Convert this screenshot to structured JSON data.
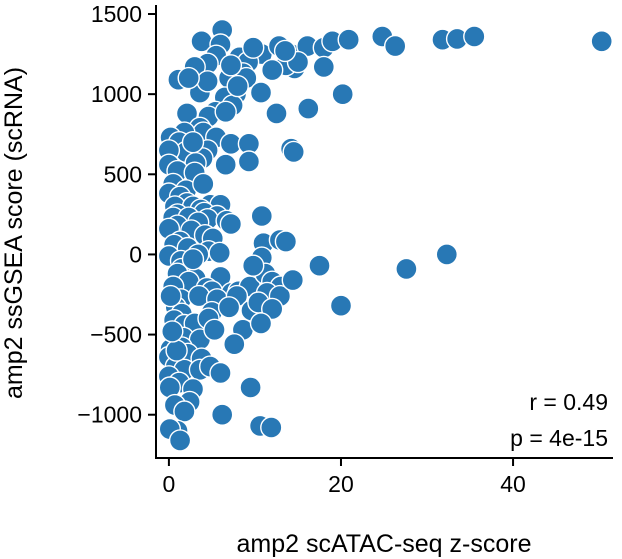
{
  "chart_data": {
    "type": "scatter",
    "title": "",
    "xlabel": "amp2 scATAC-seq z-score",
    "ylabel": "amp2 ssGSEA score (scRNA)",
    "xlim": [
      -1.5,
      51.5
    ],
    "ylim": [
      -1270,
      1550
    ],
    "xticks": [
      0,
      20,
      40
    ],
    "yticks": [
      -1000,
      -500,
      0,
      500,
      1000,
      1500
    ],
    "grid": false,
    "marker_color": "#2878b5",
    "marker_edge_color": "#ffffff",
    "annotations": [
      "r = 0.49",
      "p = 4e-15"
    ],
    "points": [
      [
        6.2,
        1400
      ],
      [
        3.8,
        1330
      ],
      [
        6.0,
        1310
      ],
      [
        8.2,
        1230
      ],
      [
        10.8,
        1250
      ],
      [
        9.2,
        1200
      ],
      [
        12.8,
        1300
      ],
      [
        14.2,
        1250
      ],
      [
        16.1,
        1300
      ],
      [
        18.0,
        1290
      ],
      [
        19.0,
        1330
      ],
      [
        20.9,
        1340
      ],
      [
        24.8,
        1360
      ],
      [
        26.3,
        1300
      ],
      [
        31.8,
        1340
      ],
      [
        33.5,
        1345
      ],
      [
        35.5,
        1360
      ],
      [
        50.3,
        1330
      ],
      [
        14.6,
        1160
      ],
      [
        13.6,
        1180
      ],
      [
        15.0,
        1200
      ],
      [
        18.0,
        1170
      ],
      [
        5.5,
        1240
      ],
      [
        4.5,
        1190
      ],
      [
        3.0,
        1170
      ],
      [
        7.0,
        1100
      ],
      [
        8.6,
        1130
      ],
      [
        12.0,
        1150
      ],
      [
        1.1,
        1090
      ],
      [
        3.6,
        1010
      ],
      [
        9.0,
        1100
      ],
      [
        10.7,
        1010
      ],
      [
        12.5,
        880
      ],
      [
        16.2,
        910
      ],
      [
        20.2,
        1000
      ],
      [
        7.8,
        1000
      ],
      [
        4.5,
        1080
      ],
      [
        6.5,
        980
      ],
      [
        5.4,
        890
      ],
      [
        4.6,
        860
      ],
      [
        7.4,
        930
      ],
      [
        2.1,
        880
      ],
      [
        3.6,
        790
      ],
      [
        4.0,
        760
      ],
      [
        5.5,
        730
      ],
      [
        6.6,
        890
      ],
      [
        1.8,
        760
      ],
      [
        0.2,
        730
      ],
      [
        1.2,
        700
      ],
      [
        2.0,
        640
      ],
      [
        0.0,
        650
      ],
      [
        4.5,
        650
      ],
      [
        7.2,
        690
      ],
      [
        9.3,
        690
      ],
      [
        14.2,
        660
      ],
      [
        14.5,
        640
      ],
      [
        3.9,
        600
      ],
      [
        6.6,
        560
      ],
      [
        9.3,
        580
      ],
      [
        3.1,
        570
      ],
      [
        0.0,
        560
      ],
      [
        1.0,
        520
      ],
      [
        3.0,
        510
      ],
      [
        0.5,
        440
      ],
      [
        2.0,
        400
      ],
      [
        0.0,
        380
      ],
      [
        4.0,
        440
      ],
      [
        1.3,
        360
      ],
      [
        2.1,
        320
      ],
      [
        0.7,
        300
      ],
      [
        2.8,
        300
      ],
      [
        4.8,
        310
      ],
      [
        6.0,
        310
      ],
      [
        3.7,
        280
      ],
      [
        4.1,
        260
      ],
      [
        5.6,
        240
      ],
      [
        1.0,
        250
      ],
      [
        0.5,
        230
      ],
      [
        2.3,
        230
      ],
      [
        4.5,
        220
      ],
      [
        3.4,
        200
      ],
      [
        1.0,
        180
      ],
      [
        6.7,
        210
      ],
      [
        7.2,
        190
      ],
      [
        10.8,
        240
      ],
      [
        0.0,
        160
      ],
      [
        2.6,
        150
      ],
      [
        4.2,
        120
      ],
      [
        5.1,
        100
      ],
      [
        1.3,
        80
      ],
      [
        0.6,
        60
      ],
      [
        2.2,
        40
      ],
      [
        4.6,
        20
      ],
      [
        5.9,
        10
      ],
      [
        3.4,
        0
      ],
      [
        0.0,
        -10
      ],
      [
        1.4,
        -40
      ],
      [
        11.0,
        70
      ],
      [
        12.9,
        90
      ],
      [
        13.6,
        80
      ],
      [
        10.8,
        -20
      ],
      [
        1.5,
        -90
      ],
      [
        1.0,
        -120
      ],
      [
        3.1,
        -150
      ],
      [
        6.0,
        -140
      ],
      [
        2.3,
        -170
      ],
      [
        0.5,
        -200
      ],
      [
        4.4,
        -210
      ],
      [
        5.0,
        -230
      ],
      [
        7.3,
        -240
      ],
      [
        8.1,
        -230
      ],
      [
        9.4,
        -200
      ],
      [
        11.2,
        -120
      ],
      [
        9.8,
        -70
      ],
      [
        12.0,
        -170
      ],
      [
        13.0,
        -200
      ],
      [
        1.4,
        -280
      ],
      [
        3.5,
        -260
      ],
      [
        5.6,
        -280
      ],
      [
        7.9,
        -260
      ],
      [
        11.4,
        -240
      ],
      [
        12.9,
        -260
      ],
      [
        14.4,
        -160
      ],
      [
        17.5,
        -70
      ],
      [
        20.0,
        -320
      ],
      [
        0.8,
        -330
      ],
      [
        1.5,
        -370
      ],
      [
        5.0,
        -360
      ],
      [
        7.0,
        -330
      ],
      [
        9.6,
        -350
      ],
      [
        10.4,
        -300
      ],
      [
        12.0,
        -340
      ],
      [
        0.6,
        -410
      ],
      [
        1.8,
        -440
      ],
      [
        3.0,
        -430
      ],
      [
        4.6,
        -400
      ],
      [
        8.6,
        -470
      ],
      [
        10.7,
        -430
      ],
      [
        0.4,
        -490
      ],
      [
        1.7,
        -520
      ],
      [
        3.6,
        -530
      ],
      [
        7.6,
        -560
      ],
      [
        0.2,
        -590
      ],
      [
        1.5,
        -580
      ],
      [
        2.2,
        -620
      ],
      [
        3.8,
        -650
      ],
      [
        0.0,
        -640
      ],
      [
        0.8,
        -700
      ],
      [
        1.8,
        -720
      ],
      [
        3.6,
        -720
      ],
      [
        4.8,
        -700
      ],
      [
        6.0,
        -740
      ],
      [
        0.0,
        -760
      ],
      [
        1.2,
        -800
      ],
      [
        2.8,
        -840
      ],
      [
        0.1,
        -830
      ],
      [
        9.5,
        -830
      ],
      [
        2.4,
        -920
      ],
      [
        0.7,
        -940
      ],
      [
        1.8,
        -980
      ],
      [
        6.2,
        -1000
      ],
      [
        10.6,
        -1070
      ],
      [
        11.9,
        -1080
      ],
      [
        1.0,
        -1100
      ],
      [
        0.1,
        -1090
      ],
      [
        1.3,
        -1160
      ],
      [
        27.6,
        -90
      ],
      [
        32.3,
        0
      ],
      [
        0.2,
        -260
      ],
      [
        0.9,
        -600
      ],
      [
        2.8,
        -30
      ],
      [
        0.4,
        -480
      ],
      [
        5.3,
        -470
      ],
      [
        2.8,
        700
      ],
      [
        8.0,
        1050
      ],
      [
        9.8,
        1290
      ],
      [
        7.2,
        1180
      ],
      [
        13.5,
        1270
      ],
      [
        2.3,
        1100
      ]
    ]
  }
}
